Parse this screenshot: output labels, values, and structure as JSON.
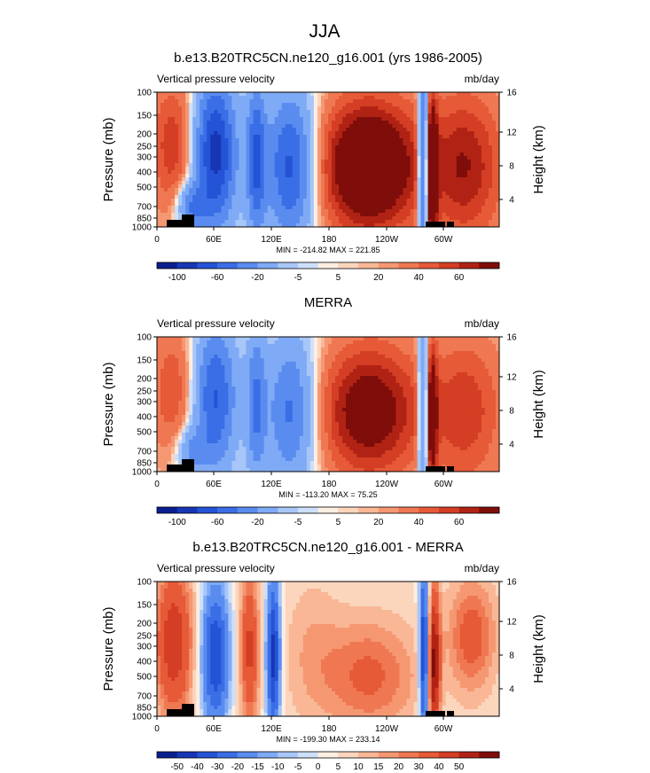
{
  "figure": {
    "title": "JJA"
  },
  "chart_data": [
    {
      "type": "heatmap",
      "title": "b.e13.B20TRC5CN.ne120_g16.001 (yrs 1986-2005)",
      "left_label": "Vertical pressure velocity",
      "right_label": "mb/day",
      "ylabel": "Pressure (mb)",
      "y2label": "Height (km)",
      "y_ticks": [
        "100",
        "150",
        "200",
        "250",
        "300",
        "400",
        "500",
        "700",
        "850",
        "1000"
      ],
      "y2_ticks": [
        "16",
        "12",
        "8",
        "4"
      ],
      "x_ticks": [
        "0",
        "60E",
        "120E",
        "180",
        "120W",
        "60W"
      ],
      "stats": "MIN = -214.82  MAX = 221.85",
      "colorbar_labels": [
        "-100",
        "-60",
        "-20",
        "-5",
        "5",
        "20",
        "40",
        "60"
      ],
      "levels": [
        -120,
        -100,
        -80,
        -60,
        -40,
        -20,
        -10,
        -5,
        -2,
        2,
        5,
        10,
        20,
        30,
        40,
        50,
        60
      ],
      "colors": [
        "#0a1f8f",
        "#1736b5",
        "#2453d6",
        "#3a6ee6",
        "#5a8cf0",
        "#7faaf5",
        "#a8c6f8",
        "#cde0fb",
        "#fdeee2",
        "#fcd5bd",
        "#f9b796",
        "#f59872",
        "#ef7852",
        "#e65a38",
        "#d43e24",
        "#b02314",
        "#7f0d0a"
      ],
      "min": -214.82,
      "max": 221.85
    },
    {
      "type": "heatmap",
      "title": "MERRA",
      "left_label": "Vertical pressure velocity",
      "right_label": "mb/day",
      "ylabel": "Pressure (mb)",
      "y2label": "Height (km)",
      "y_ticks": [
        "100",
        "150",
        "200",
        "250",
        "300",
        "400",
        "500",
        "700",
        "850",
        "1000"
      ],
      "y2_ticks": [
        "16",
        "12",
        "8",
        "4"
      ],
      "x_ticks": [
        "0",
        "60E",
        "120E",
        "180",
        "120W",
        "60W"
      ],
      "stats": "MIN = -113.20  MAX = 75.25",
      "colorbar_labels": [
        "-100",
        "-60",
        "-20",
        "-5",
        "5",
        "20",
        "40",
        "60"
      ],
      "levels": [
        -120,
        -100,
        -80,
        -60,
        -40,
        -20,
        -10,
        -5,
        -2,
        2,
        5,
        10,
        20,
        30,
        40,
        50,
        60
      ],
      "colors": [
        "#0a1f8f",
        "#1736b5",
        "#2453d6",
        "#3a6ee6",
        "#5a8cf0",
        "#7faaf5",
        "#a8c6f8",
        "#cde0fb",
        "#fdeee2",
        "#fcd5bd",
        "#f9b796",
        "#f59872",
        "#ef7852",
        "#e65a38",
        "#d43e24",
        "#b02314",
        "#7f0d0a"
      ],
      "min": -113.2,
      "max": 75.25
    },
    {
      "type": "heatmap",
      "title": "b.e13.B20TRC5CN.ne120_g16.001 - MERRA",
      "left_label": "Vertical pressure velocity",
      "right_label": "mb/day",
      "ylabel": "Pressure (mb)",
      "y2label": "Height (km)",
      "y_ticks": [
        "100",
        "150",
        "200",
        "250",
        "300",
        "400",
        "500",
        "700",
        "850",
        "1000"
      ],
      "y2_ticks": [
        "16",
        "12",
        "8",
        "4"
      ],
      "x_ticks": [
        "0",
        "60E",
        "120E",
        "180",
        "120W",
        "60W"
      ],
      "stats": "MIN = -199.30  MAX = 233.14",
      "colorbar_labels": [
        "-50",
        "-40",
        "-30",
        "-20",
        "-15",
        "-10",
        "-5",
        "0",
        "5",
        "10",
        "15",
        "20",
        "30",
        "40",
        "50"
      ],
      "levels": [
        -60,
        -50,
        -40,
        -30,
        -20,
        -15,
        -10,
        -5,
        0,
        5,
        10,
        15,
        20,
        30,
        40,
        50,
        60
      ],
      "colors": [
        "#0a1f8f",
        "#1736b5",
        "#2453d6",
        "#3a6ee6",
        "#5a8cf0",
        "#7faaf5",
        "#a8c6f8",
        "#cde0fb",
        "#fdeee2",
        "#fcd5bd",
        "#f9b796",
        "#f59872",
        "#ef7852",
        "#e65a38",
        "#d43e24",
        "#b02314",
        "#7f0d0a"
      ],
      "min": -199.3,
      "max": 233.14
    }
  ]
}
